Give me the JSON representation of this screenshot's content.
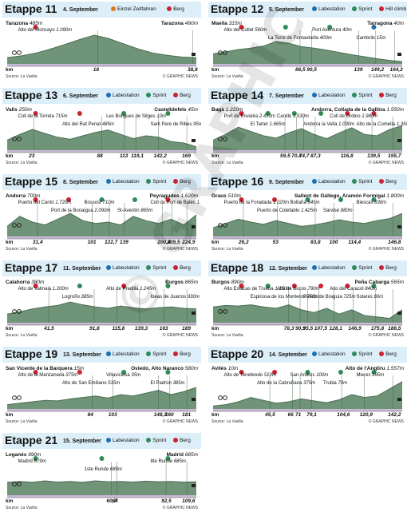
{
  "watermark": "© GRAPHIC NEWS",
  "legend": {
    "time_trial": "Einzel Zeitfahren",
    "intermediate_sprint": "Sprint",
    "mountain": "Berg",
    "hill_climb": "Hill climb",
    "labestation": "Labestation"
  },
  "colors": {
    "profile_fill": "#6f9478",
    "profile_dark": "#4b6e54",
    "header_bg": "#dceef8",
    "sprint": "#2e8b57",
    "mountain": "#cc2233",
    "feed": "#1f6fb0",
    "time_trial": "#e07a10"
  },
  "common": {
    "km_label": "km",
    "source": "Source: La Vuelta",
    "credit": "© GRAPHIC NEWS"
  },
  "stages": [
    {
      "id": "11",
      "name": "Etappe 11",
      "date": "4. September",
      "legend": [
        "time_trial",
        "mountain"
      ],
      "start": {
        "name": "Tarazona",
        "alt": "485m"
      },
      "finish": {
        "name": "Tarazona",
        "alt": "490m"
      },
      "km_marks": [
        "18",
        "38,8"
      ],
      "km_pos": [
        0.48,
        0.98
      ],
      "profile": [
        0.22,
        0.28,
        0.38,
        0.52,
        0.68,
        0.85,
        1.0,
        0.88,
        0.7,
        0.52,
        0.38,
        0.3,
        0.24,
        0.22
      ],
      "annotations": [
        {
          "text": "Alto del Moncayo",
          "sub": "1.090m",
          "type": "mountain"
        }
      ],
      "icons": [
        "sprint"
      ]
    },
    {
      "id": "12",
      "name": "Etappe 12",
      "date": "5. September",
      "legend": [
        "labestation",
        "intermediate_sprint",
        "hill_climb"
      ],
      "start": {
        "name": "Maella",
        "alt": "315m"
      },
      "finish": {
        "name": "Tarragona",
        "alt": "40m"
      },
      "km_marks": [
        "86,5",
        "90,5",
        "139",
        "149,2",
        "164,2"
      ],
      "km_pos": [
        0.46,
        0.52,
        0.77,
        0.86,
        0.96
      ],
      "profile": [
        0.35,
        0.42,
        0.5,
        0.55,
        0.62,
        0.78,
        0.72,
        0.6,
        0.55,
        0.48,
        0.4,
        0.32,
        0.25,
        0.18,
        0.12,
        0.08
      ],
      "annotations": [
        {
          "text": "Alto del Collet",
          "sub": "560m",
          "type": "mountain"
        },
        {
          "text": "La Torre de Fontaubella",
          "sub": "400m",
          "type": "sprint"
        },
        {
          "text": "Port Aventura",
          "sub": "40m",
          "type": "sprint"
        },
        {
          "text": "Cambrils",
          "sub": "15m",
          "type": "feed"
        }
      ],
      "icons": [
        "sprint"
      ]
    },
    {
      "id": "13",
      "name": "Etappe 13",
      "date": "6. September",
      "legend": [
        "labestation",
        "intermediate_sprint",
        "mountain"
      ],
      "start": {
        "name": "Valls",
        "alt": "250m"
      },
      "finish": {
        "name": "Castelldefels",
        "alt": "45m"
      },
      "km_marks": [
        "23",
        "88",
        "113",
        "119,1",
        "142,2",
        "169"
      ],
      "km_pos": [
        0.14,
        0.5,
        0.62,
        0.68,
        0.8,
        0.95
      ],
      "profile": [
        0.35,
        0.55,
        0.72,
        0.58,
        0.45,
        0.38,
        0.5,
        0.62,
        0.7,
        0.55,
        0.4,
        0.5,
        0.45,
        0.3,
        0.25,
        0.12
      ],
      "annotations": [
        {
          "text": "Coll de la Torreta",
          "sub": "715m",
          "type": "mountain"
        },
        {
          "text": "Alto del Rat Penat",
          "sub": "485m",
          "type": "mountain"
        },
        {
          "text": "Les Botigues de Sitges",
          "sub": "10m",
          "type": "sprint"
        },
        {
          "text": "Sant Pere de Ribes",
          "sub": "95m",
          "type": "sprint"
        }
      ],
      "icons": [
        "sprint"
      ]
    },
    {
      "id": "14",
      "name": "Etappe 14",
      "date": "7. September",
      "legend": [
        "labestation",
        "intermediate_sprint",
        "mountain"
      ],
      "start": {
        "name": "Bagà",
        "alt": "1.220m"
      },
      "finish": {
        "name": "Andorra, Collada de la Gallina",
        "alt": "1.550m"
      },
      "km_marks": [
        "59,5",
        "70,4",
        "74,7",
        "87,3",
        "116,8",
        "139,5",
        "155,7"
      ],
      "km_pos": [
        0.38,
        0.44,
        0.48,
        0.54,
        0.7,
        0.84,
        0.95
      ],
      "profile": [
        0.35,
        0.55,
        0.8,
        0.65,
        0.5,
        0.42,
        0.6,
        0.75,
        0.55,
        0.4,
        0.6,
        0.78,
        0.55,
        0.5,
        0.72,
        0.85
      ],
      "annotations": [
        {
          "text": "Port de Envalira",
          "sub": "2.410m",
          "type": "mountain"
        },
        {
          "text": "El Tarter",
          "sub": "1.665m",
          "type": "sprint"
        },
        {
          "text": "Canillo",
          "sub": "1.530m",
          "type": "sprint"
        },
        {
          "text": "Andorra la Vella",
          "sub": "1.030m",
          "type": "sprint"
        },
        {
          "text": "Coll de Ordino",
          "sub": "1.980m",
          "type": "mountain"
        },
        {
          "text": "Alto de la Comella",
          "sub": "1.350m",
          "type": "mountain"
        }
      ],
      "icons": [
        "sprint"
      ]
    },
    {
      "id": "15",
      "name": "Etappe 15",
      "date": "8. September",
      "legend": [
        "labestation",
        "intermediate_sprint",
        "mountain"
      ],
      "start": {
        "name": "Andorra",
        "alt": "700m"
      },
      "finish": {
        "name": "Peyragudes",
        "alt": "1.620m"
      },
      "km_marks": [
        "31,4",
        "101",
        "122,7",
        "139",
        "200,4",
        "209,5",
        "224,9"
      ],
      "km_pos": [
        0.16,
        0.45,
        0.54,
        0.62,
        0.82,
        0.87,
        0.95
      ],
      "profile": [
        0.35,
        0.7,
        0.5,
        0.4,
        0.6,
        0.8,
        0.55,
        0.45,
        0.5,
        0.4,
        0.7,
        0.55,
        0.45,
        0.6,
        0.4,
        0.75
      ],
      "annotations": [
        {
          "text": "Puerto del Cantó",
          "sub": "1.720m",
          "type": "mountain"
        },
        {
          "text": "Port de la Bonaigua",
          "sub": "2.090m",
          "type": "mountain"
        },
        {
          "text": "Bossost",
          "sub": "710m",
          "type": "sprint"
        },
        {
          "text": "St-Aventin",
          "sub": "865m",
          "type": "sprint"
        },
        {
          "text": "Coll du Port de Balès",
          "sub": "1.770m",
          "type": "mountain"
        }
      ],
      "icons": [
        "sprint"
      ]
    },
    {
      "id": "16",
      "name": "Etappe 16",
      "date": "9. September",
      "legend": [
        "labestation",
        "intermediate_sprint",
        "mountain"
      ],
      "start": {
        "name": "Graus",
        "alt": "510m"
      },
      "finish": {
        "name": "Sallent de Gállego, Aramón Formigal",
        "alt": "1.800m"
      },
      "km_marks": [
        "26,2",
        "53",
        "83,8",
        "100",
        "114,4",
        "146,8"
      ],
      "km_pos": [
        0.16,
        0.34,
        0.54,
        0.64,
        0.74,
        0.95
      ],
      "profile": [
        0.3,
        0.45,
        0.6,
        0.5,
        0.42,
        0.55,
        0.45,
        0.35,
        0.4,
        0.48,
        0.58,
        0.5,
        0.45,
        0.55,
        0.62,
        0.8
      ],
      "annotations": [
        {
          "text": "Puerto de la Foradada",
          "sub": "1.020m",
          "type": "mountain"
        },
        {
          "text": "Puerto de Cotefablo",
          "sub": "1.425m",
          "type": "mountain"
        },
        {
          "text": "Boltaña",
          "sub": "645m",
          "type": "sprint"
        },
        {
          "text": "Sarvisé",
          "sub": "880m",
          "type": "sprint"
        },
        {
          "text": "Biescas",
          "sub": "830m",
          "type": "sprint"
        }
      ],
      "icons": [
        "sprint"
      ]
    },
    {
      "id": "17",
      "name": "Etappe 17",
      "date": "11. September",
      "legend": [
        "labestation",
        "intermediate_sprint",
        "mountain"
      ],
      "start": {
        "name": "Calahorra",
        "alt": "380m"
      },
      "finish": {
        "name": "Burgos",
        "alt": "865m"
      },
      "km_marks": [
        "41,5",
        "91,8",
        "115,8",
        "139,3",
        "163",
        "189"
      ],
      "km_pos": [
        0.22,
        0.46,
        0.58,
        0.7,
        0.83,
        0.95
      ],
      "profile": [
        0.3,
        0.38,
        0.48,
        0.55,
        0.6,
        0.72,
        0.62,
        0.55,
        0.5,
        0.58,
        0.52,
        0.48,
        0.52,
        0.55,
        0.5,
        0.48
      ],
      "annotations": [
        {
          "text": "Alto de Valmala",
          "sub": "1.200m",
          "type": "mountain"
        },
        {
          "text": "Logroño",
          "sub": "385m",
          "type": "sprint"
        },
        {
          "text": "Alto de Pradilla",
          "sub": "1.245m",
          "type": "mountain"
        },
        {
          "text": "Ibeas de Juarros",
          "sub": "930m",
          "type": "sprint"
        }
      ],
      "icons": [
        "sprint"
      ]
    },
    {
      "id": "18",
      "name": "Etappe 18",
      "date": "12. September",
      "legend": [
        "labestation",
        "intermediate_sprint",
        "mountain"
      ],
      "start": {
        "name": "Burgos",
        "alt": "890m"
      },
      "finish": {
        "name": "Peña Cabarga",
        "alt": "565m"
      },
      "km_marks": [
        "78,3",
        "90,9",
        "95,5",
        "107,5",
        "128,1",
        "146,9",
        "175,8",
        "186,5"
      ],
      "km_pos": [
        0.4,
        0.46,
        0.5,
        0.56,
        0.64,
        0.74,
        0.86,
        0.95
      ],
      "profile": [
        0.55,
        0.6,
        0.58,
        0.62,
        0.55,
        0.5,
        0.62,
        0.45,
        0.35,
        0.5,
        0.3,
        0.45,
        0.25,
        0.2,
        0.15,
        0.45
      ],
      "annotations": [
        {
          "text": "Alto Estacas de Trueba",
          "sub": "1.150m",
          "type": "mountain"
        },
        {
          "text": "Espinosa de los Monteros",
          "sub": "750m",
          "type": "sprint"
        },
        {
          "text": "Alto de Bocos",
          "sub": "790m",
          "type": "mountain"
        },
        {
          "text": "Puerto de Braguía",
          "sub": "725m",
          "type": "mountain"
        },
        {
          "text": "Alto del Caracol",
          "sub": "840m",
          "type": "mountain"
        },
        {
          "text": "Solares",
          "sub": "60m",
          "type": "sprint"
        }
      ],
      "icons": [
        "sprint"
      ]
    },
    {
      "id": "19",
      "name": "Etappe 19",
      "date": "13. September",
      "legend": [
        "labestation",
        "intermediate_sprint",
        "mountain"
      ],
      "start": {
        "name": "San Vicente de la Barquera",
        "alt": "15m"
      },
      "finish": {
        "name": "Oviedo, Alto Naranco",
        "alt": "580m"
      },
      "km_marks": [
        "84",
        "103",
        "148,3",
        "160",
        "181"
      ],
      "km_pos": [
        0.45,
        0.56,
        0.8,
        0.86,
        0.95
      ],
      "profile": [
        0.15,
        0.2,
        0.25,
        0.3,
        0.28,
        0.35,
        0.4,
        0.45,
        0.38,
        0.5,
        0.45,
        0.55,
        0.65,
        0.5,
        0.6,
        0.75
      ],
      "annotations": [
        {
          "text": "Alto de la Manzaneda",
          "sub": "375m",
          "type": "mountain"
        },
        {
          "text": "Alto de San Emiliano",
          "sub": "515m",
          "type": "mountain"
        },
        {
          "text": "Villaviciosa",
          "sub": "35m",
          "type": "sprint"
        },
        {
          "text": "El Padrún",
          "sub": "385m",
          "type": "sprint"
        }
      ],
      "icons": [
        "sprint"
      ]
    },
    {
      "id": "20",
      "name": "Etappe 20",
      "date": "14. September",
      "legend": [
        "labestation",
        "intermediate_sprint",
        "mountain"
      ],
      "start": {
        "name": "Avilés",
        "alt": "10m"
      },
      "finish": {
        "name": "Alto de l'Angliru",
        "alt": "1.557m"
      },
      "km_marks": [
        "45,5",
        "66",
        "71",
        "79,1",
        "104,6",
        "120,9",
        "142,2"
      ],
      "km_pos": [
        0.3,
        0.42,
        0.46,
        0.52,
        0.68,
        0.8,
        0.95
      ],
      "profile": [
        0.1,
        0.15,
        0.25,
        0.4,
        0.3,
        0.2,
        0.25,
        0.35,
        0.28,
        0.22,
        0.32,
        0.5,
        0.4,
        0.45,
        0.7,
        0.95
      ],
      "annotations": [
        {
          "text": "Alto de Tenebredo",
          "sub": "510m",
          "type": "mountain"
        },
        {
          "text": "Alto de la Cabruñana",
          "sub": "375m",
          "type": "mountain"
        },
        {
          "text": "San Andrés",
          "sub": "100m",
          "type": "sprint"
        },
        {
          "text": "Trubia",
          "sub": "70m",
          "type": "sprint"
        },
        {
          "text": "Mieres",
          "sub": "195m",
          "type": "sprint"
        }
      ],
      "icons": [
        "sprint"
      ]
    },
    {
      "id": "21",
      "name": "Etappe 21",
      "date": "15. September",
      "legend": [
        "labestation",
        "intermediate_sprint",
        "mountain"
      ],
      "start": {
        "name": "Leganés",
        "alt": "690m"
      },
      "finish": {
        "name": "Madrid",
        "alt": "685m"
      },
      "km_marks": [
        "60,7",
        "64",
        "92,5",
        "109,6"
      ],
      "km_pos": [
        0.55,
        0.58,
        0.84,
        0.95
      ],
      "profile": [
        0.45,
        0.48,
        0.45,
        0.5,
        0.46,
        0.48,
        0.45,
        0.5,
        0.47,
        0.48,
        0.46,
        0.49,
        0.47,
        0.48,
        0.46,
        0.47
      ],
      "annotations": [
        {
          "text": "Madrid",
          "sub": "679m",
          "type": "sprint"
        },
        {
          "text": "1ste Runde",
          "sub": "685m",
          "type": "sprint"
        },
        {
          "text": "8te Runde",
          "sub": "685m",
          "type": "sprint"
        }
      ],
      "icons": [
        "sprint"
      ]
    }
  ]
}
